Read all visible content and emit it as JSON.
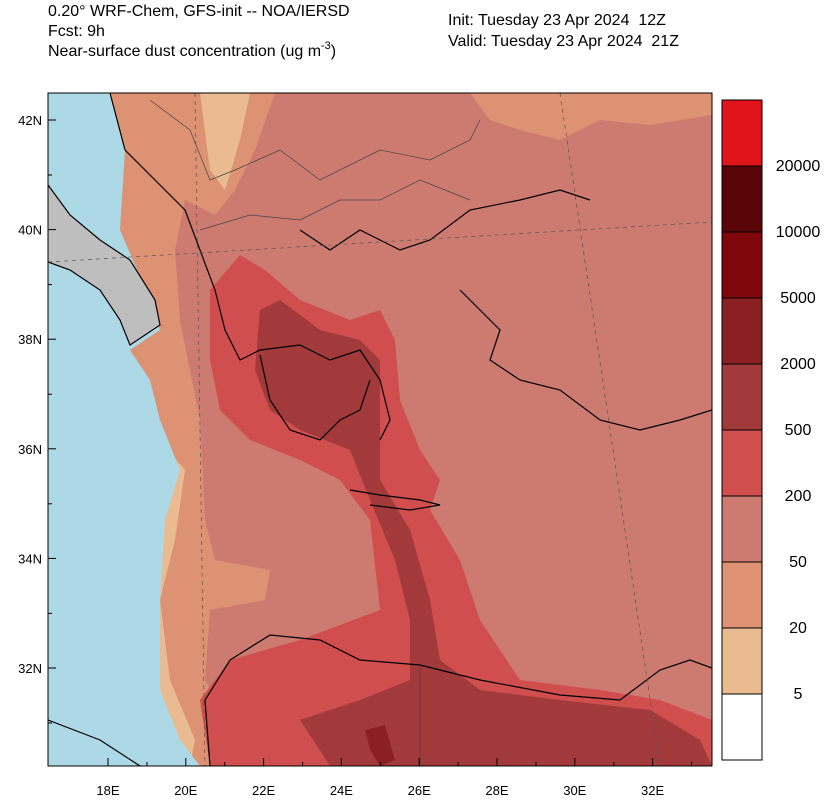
{
  "header": {
    "model": "0.20° WRF-Chem, GFS-init -- NOA/IERSD",
    "forecast": "Fcst: 9h",
    "field": "Near-surface dust concentration (ug m",
    "field_exponent": "-3",
    "field_close": ")",
    "init": "Init: Tuesday 23 Apr 2024  12Z",
    "valid": "Valid: Tuesday 23 Apr 2024  21Z"
  },
  "map": {
    "lat_labels": [
      "42N",
      "40N",
      "38N",
      "36N",
      "34N",
      "32N"
    ],
    "lon_labels": [
      "18E",
      "20E",
      "22E",
      "24E",
      "26E",
      "28E",
      "30E",
      "32E"
    ]
  },
  "colorbar": {
    "levels": [
      20000,
      10000,
      5000,
      2000,
      500,
      200,
      50,
      20,
      5
    ],
    "colors": [
      "#e0141a",
      "#5a0508",
      "#80080c",
      "#8b2023",
      "#a23a3c",
      "#d04e4e",
      "#cd7b70",
      "#dd9273",
      "#eabb90",
      "#ffffff"
    ]
  }
}
